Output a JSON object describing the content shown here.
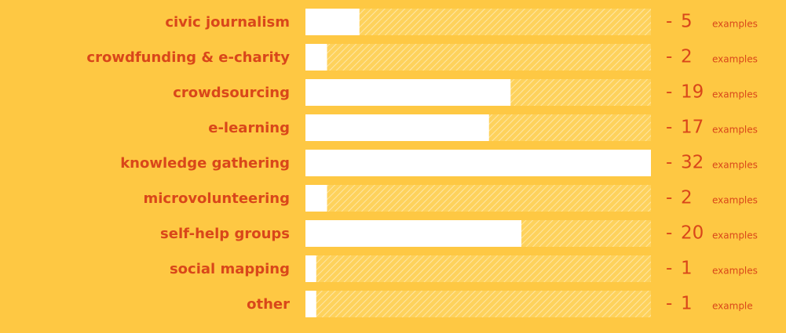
{
  "chart_data": {
    "type": "bar",
    "orientation": "horizontal",
    "categories": [
      "civic journalism",
      "crowdfunding & e-charity",
      "crowdsourcing",
      "e-learning",
      "knowledge gathering",
      "microvolunteering",
      "self-help groups",
      "social mapping",
      "other"
    ],
    "values": [
      5,
      2,
      19,
      17,
      32,
      2,
      20,
      1,
      1
    ],
    "separator": "-",
    "unit_labels": [
      "examples",
      "examples",
      "examples",
      "examples",
      "examples",
      "examples",
      "examples",
      "examples",
      "example"
    ],
    "xlim": [
      0,
      32
    ],
    "color": "#ffffff",
    "background": "#fec843",
    "text_color": "#d9471a"
  }
}
